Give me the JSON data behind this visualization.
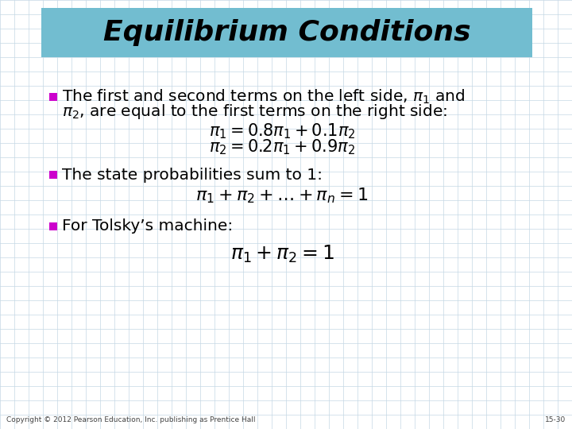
{
  "title": "Equilibrium Conditions",
  "title_bg_color": "#72BDD0",
  "slide_bg_color": "#FFFFFF",
  "grid_color": "#C5D8E5",
  "bullet_color": "#CC00CC",
  "text_color": "#000000",
  "title_font_size": 26,
  "body_font_size": 14.5,
  "math_font_size": 15,
  "footer_text": "Copyright © 2012 Pearson Education, Inc. publishing as Prentice Hall",
  "footer_right": "15-30"
}
